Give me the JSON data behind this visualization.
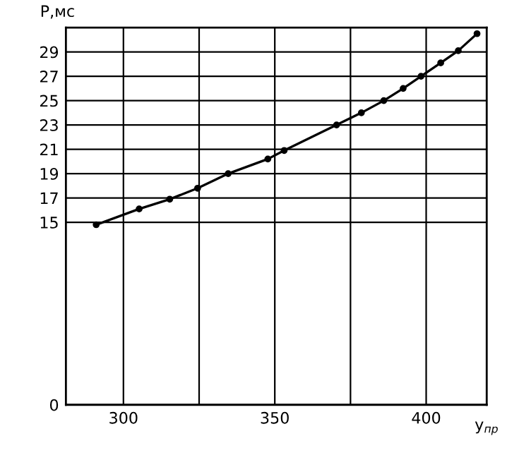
{
  "chart_data": {
    "type": "line",
    "xlabel": "y$_{пр}$",
    "ylabel": "Р,мс",
    "x": [
      291,
      305.2,
      315.3,
      324.5,
      334.6,
      347.7,
      353.1,
      370.4,
      378.6,
      386.0,
      392.4,
      398.3,
      404.8,
      410.6,
      416.8
    ],
    "series": [
      {
        "color": "#000000",
        "values": [
          14.8,
          16.1,
          16.9,
          17.8,
          19.0,
          20.2,
          20.9,
          23.0,
          24.0,
          25.0,
          26.0,
          27.0,
          28.1,
          29.1,
          30.5
        ]
      }
    ],
    "xlim": [
      281,
      420
    ],
    "ylim": [
      0,
      31
    ],
    "xticks": [
      300,
      {
        "value": 325,
        "label": null
      },
      350,
      {
        "value": 375,
        "label": null
      },
      400
    ],
    "yticks": [
      0,
      15,
      17,
      19,
      21,
      23,
      25,
      27,
      29
    ],
    "grid": true,
    "marker": "circle",
    "line_style": "solid"
  }
}
